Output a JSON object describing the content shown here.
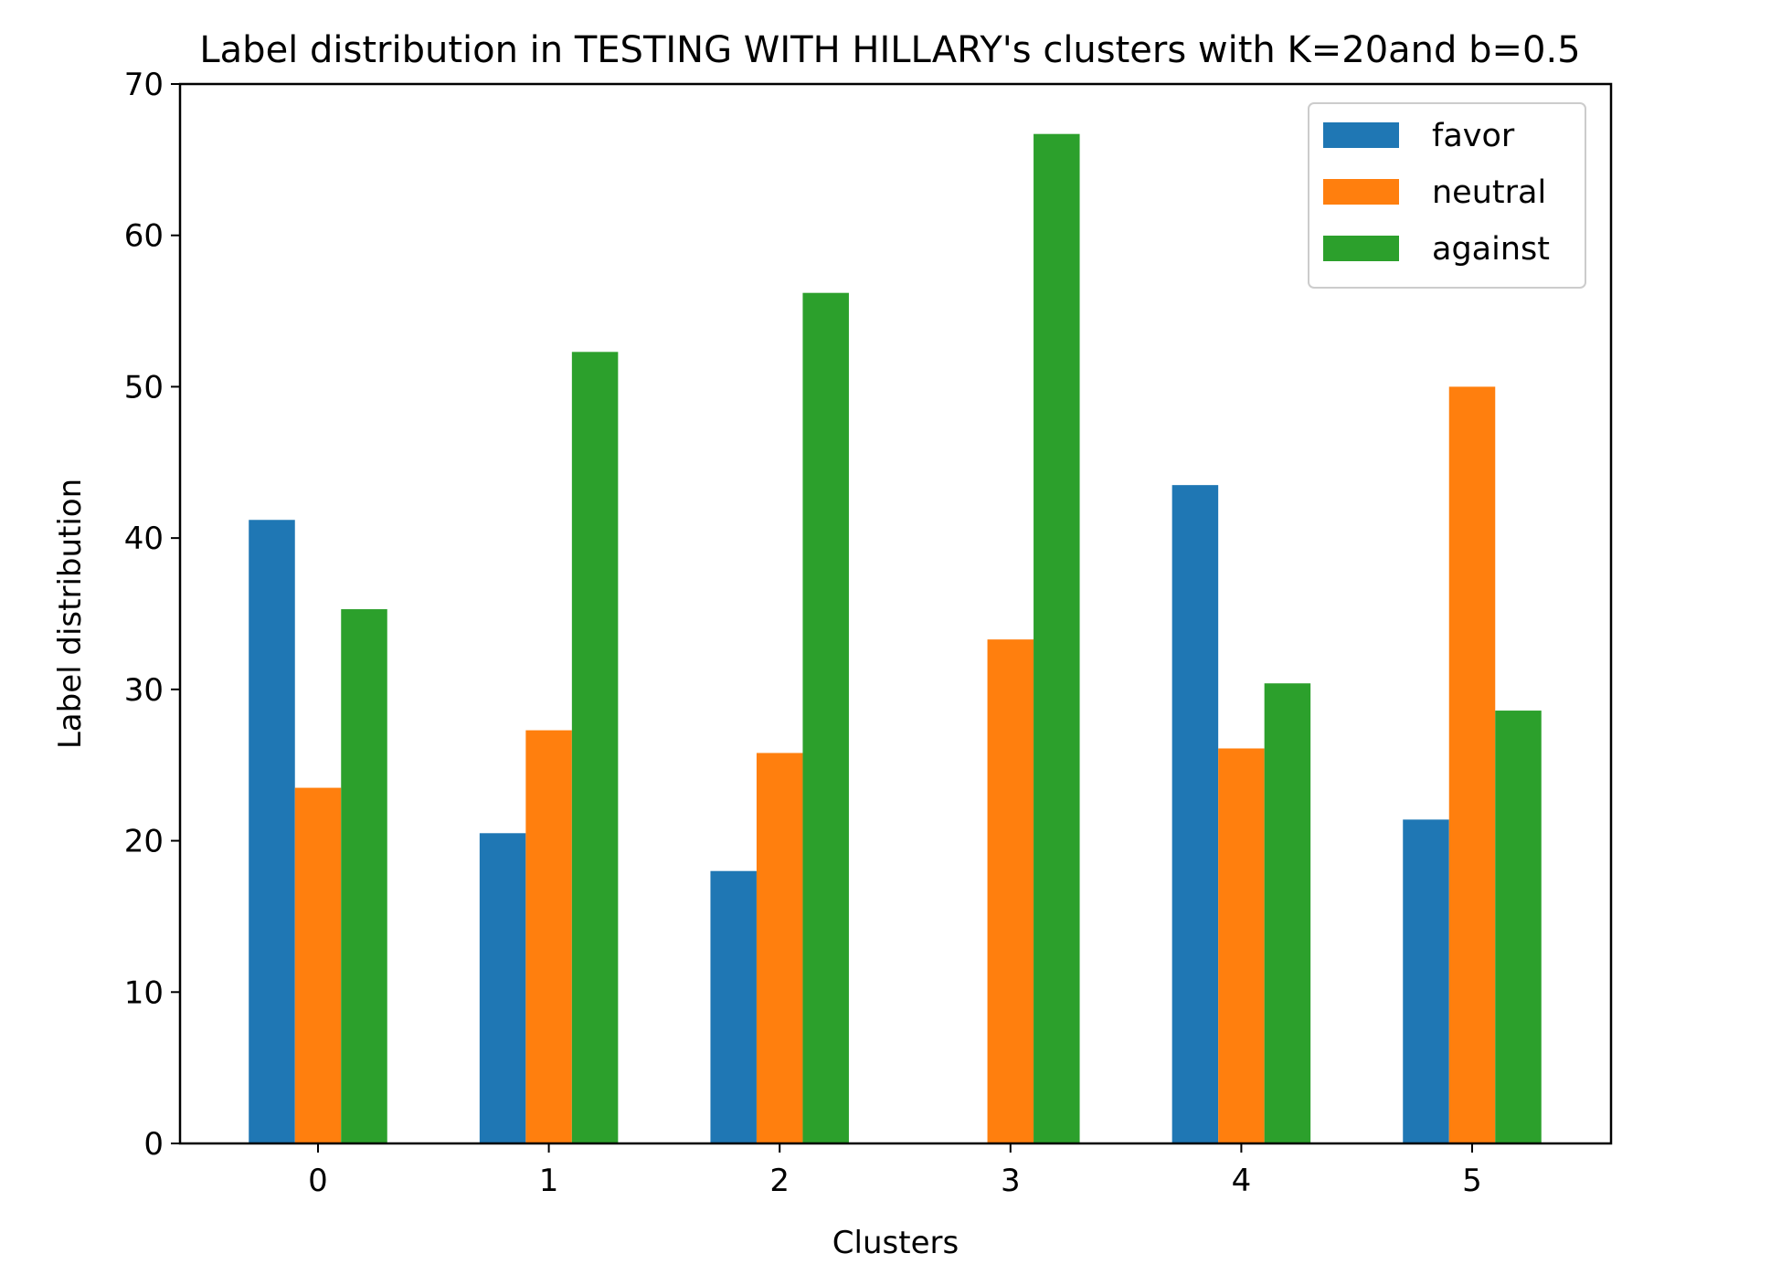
{
  "chart_data": {
    "type": "bar",
    "title": "Label distribution in TESTING WITH HILLARY's clusters with K=20and b=0.5",
    "xlabel": "Clusters",
    "ylabel": "Label distribution",
    "categories": [
      "0",
      "1",
      "2",
      "3",
      "4",
      "5"
    ],
    "ylim": [
      0,
      70
    ],
    "yticks": [
      0,
      10,
      20,
      30,
      40,
      50,
      60,
      70
    ],
    "grid": false,
    "legend_position": "top-right",
    "series": [
      {
        "name": "favor",
        "color": "#1f77b4",
        "values": [
          41.2,
          20.5,
          18.0,
          0,
          43.5,
          21.4
        ]
      },
      {
        "name": "neutral",
        "color": "#ff7f0e",
        "values": [
          23.5,
          27.3,
          25.8,
          33.3,
          26.1,
          50.0
        ]
      },
      {
        "name": "against",
        "color": "#2ca02c",
        "values": [
          35.3,
          52.3,
          56.2,
          66.7,
          30.4,
          28.6
        ]
      }
    ]
  }
}
